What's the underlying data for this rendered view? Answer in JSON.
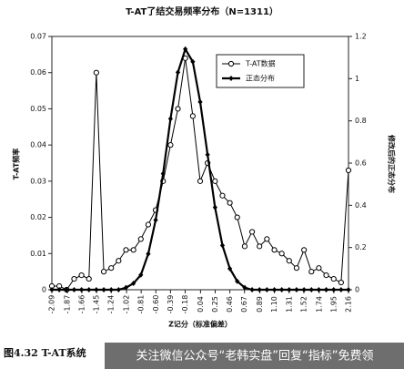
{
  "chart_data": {
    "type": "line",
    "title": "T-AT了结交易频率分布（N=1311）",
    "xlabel": "Z记分（标准偏差）",
    "ylabel": "T-AT频率",
    "y2label": "修改后的正态分布",
    "caption": "图4.32  T-AT系统",
    "watermark": "关注微信公众号“老韩实盘”回复“指标”免费领",
    "x": [
      -2.09,
      -1.984,
      -1.878,
      -1.771,
      -1.665,
      -1.559,
      -1.453,
      -1.346,
      -1.24,
      -1.134,
      -1.028,
      -0.921,
      -0.815,
      -0.709,
      -0.603,
      -0.496,
      -0.39,
      -0.284,
      -0.178,
      -0.071,
      0.035,
      0.141,
      0.248,
      0.354,
      0.46,
      0.566,
      0.673,
      0.779,
      0.885,
      0.991,
      1.098,
      1.204,
      1.31,
      1.416,
      1.523,
      1.629,
      1.735,
      1.841,
      1.948,
      2.054,
      2.16
    ],
    "series": [
      {
        "name": "T-AT数据",
        "color": "#000000",
        "marker": "open-circle",
        "values": [
          0.001,
          0.001,
          0,
          0.003,
          0.004,
          0.003,
          0.06,
          0.005,
          0.006,
          0.008,
          0.011,
          0.011,
          0.014,
          0.018,
          0.022,
          0.03,
          0.04,
          0.05,
          0.064,
          0.048,
          0.03,
          0.035,
          0.03,
          0.026,
          0.024,
          0.02,
          0.012,
          0.016,
          0.012,
          0.014,
          0.011,
          0.01,
          0.008,
          0.006,
          0.011,
          0.005,
          0.006,
          0.004,
          0.003,
          0.002,
          0.033
        ]
      },
      {
        "name": "正态分布",
        "color": "#000000",
        "marker": "filled-diamond",
        "axis": "y2",
        "values": [
          0,
          0,
          0,
          0,
          0,
          0,
          0,
          0,
          0,
          0,
          0.01,
          0.03,
          0.07,
          0.17,
          0.33,
          0.55,
          0.81,
          1.03,
          1.14,
          1.08,
          0.89,
          0.64,
          0.39,
          0.21,
          0.1,
          0.04,
          0.01,
          0,
          0,
          0,
          0,
          0,
          0,
          0,
          0,
          0,
          0,
          0,
          0,
          0,
          0
        ]
      }
    ],
    "xlim": [
      -2.09,
      2.16
    ],
    "xticks": [
      -2.09,
      -1.87,
      -1.66,
      -1.45,
      -1.24,
      -1.02,
      -0.81,
      {
        "value": -0.6,
        "label": "-0.60"
      },
      -0.39,
      -0.18,
      0.04,
      0.25,
      0.46,
      0.67,
      0.89,
      {
        "value": 1.1,
        "label": "1.10"
      },
      1.31,
      1.52,
      1.74,
      1.95,
      2.16
    ],
    "ylim": [
      0,
      0.07
    ],
    "yticks": [
      0,
      0.01,
      0.02,
      0.03,
      0.04,
      0.05,
      0.06,
      0.07
    ],
    "y2lim": [
      0,
      1.2
    ],
    "y2ticks": [
      0,
      0.2,
      0.4,
      0.6,
      0.8,
      1,
      1.2
    ],
    "legend": "upper right"
  }
}
